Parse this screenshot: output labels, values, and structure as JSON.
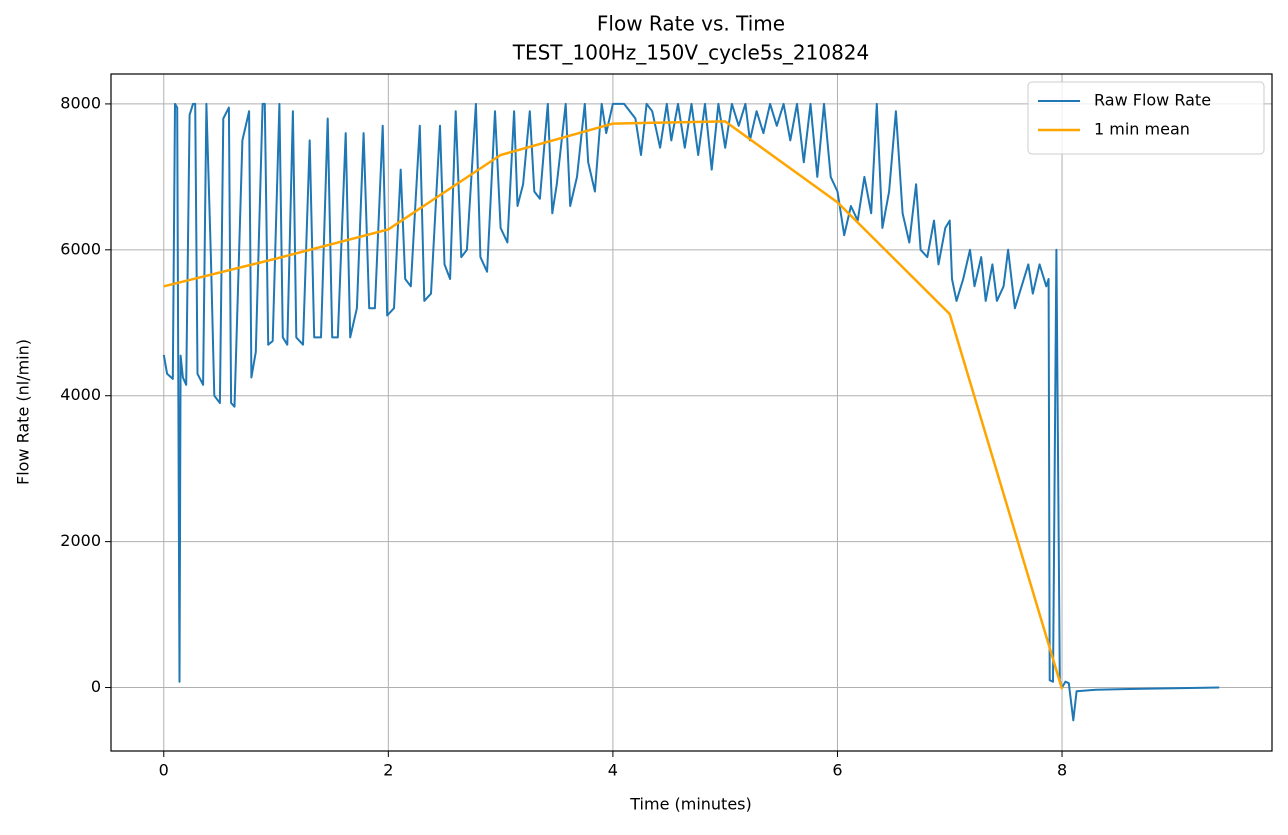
{
  "chart_data": {
    "type": "line",
    "title": "Flow Rate vs. Time",
    "subtitle": "TEST_100Hz_150V_cycle5s_210824",
    "x_label": "Time (minutes)",
    "y_label": "Flow Rate (nl/min)",
    "xlim": [
      -0.47,
      9.87
    ],
    "ylim": [
      -870,
      8410
    ],
    "xticks": [
      0,
      2,
      4,
      6,
      8
    ],
    "yticks": [
      0,
      2000,
      4000,
      6000,
      8000
    ],
    "grid": true,
    "legend": "upper right",
    "series": [
      {
        "name": "Raw Flow Rate",
        "color": "#1f77b4",
        "width": 2,
        "x": [
          0,
          0.03,
          0.08,
          0.1,
          0.12,
          0.14,
          0.15,
          0.17,
          0.2,
          0.23,
          0.26,
          0.28,
          0.3,
          0.35,
          0.38,
          0.42,
          0.45,
          0.5,
          0.53,
          0.58,
          0.6,
          0.63,
          0.7,
          0.76,
          0.78,
          0.82,
          0.88,
          0.9,
          0.93,
          0.97,
          1.03,
          1.06,
          1.1,
          1.15,
          1.18,
          1.24,
          1.3,
          1.34,
          1.4,
          1.46,
          1.5,
          1.55,
          1.62,
          1.66,
          1.72,
          1.78,
          1.83,
          1.88,
          1.95,
          1.99,
          2.05,
          2.11,
          2.15,
          2.2,
          2.28,
          2.32,
          2.38,
          2.46,
          2.5,
          2.55,
          2.6,
          2.65,
          2.7,
          2.78,
          2.82,
          2.88,
          2.95,
          3.0,
          3.06,
          3.12,
          3.15,
          3.2,
          3.26,
          3.3,
          3.35,
          3.42,
          3.46,
          3.5,
          3.58,
          3.62,
          3.68,
          3.75,
          3.78,
          3.84,
          3.9,
          3.94,
          4.0,
          4.1,
          4.2,
          4.25,
          4.3,
          4.35,
          4.42,
          4.48,
          4.52,
          4.58,
          4.64,
          4.7,
          4.76,
          4.82,
          4.88,
          4.94,
          5.0,
          5.06,
          5.12,
          5.18,
          5.22,
          5.28,
          5.34,
          5.4,
          5.46,
          5.52,
          5.58,
          5.64,
          5.7,
          5.76,
          5.82,
          5.88,
          5.94,
          6.0,
          6.06,
          6.12,
          6.18,
          6.24,
          6.3,
          6.35,
          6.4,
          6.46,
          6.52,
          6.58,
          6.64,
          6.7,
          6.74,
          6.8,
          6.86,
          6.9,
          6.96,
          7.0,
          7.02,
          7.06,
          7.12,
          7.18,
          7.22,
          7.28,
          7.32,
          7.38,
          7.42,
          7.48,
          7.52,
          7.58,
          7.64,
          7.7,
          7.74,
          7.8,
          7.86,
          7.88,
          7.89,
          7.92,
          7.95,
          7.98,
          8.0,
          8.03,
          8.06,
          8.1,
          8.13,
          8.3,
          8.6,
          9.0,
          9.4
        ],
        "values": [
          4560,
          4300,
          4230,
          8000,
          7950,
          80,
          4550,
          4250,
          4150,
          7850,
          8000,
          8000,
          4300,
          4150,
          8000,
          5900,
          4000,
          3900,
          7800,
          7950,
          3900,
          3850,
          7500,
          7900,
          4250,
          4600,
          8000,
          8000,
          4700,
          4750,
          8000,
          4800,
          4700,
          7900,
          4800,
          4700,
          7500,
          4800,
          4800,
          7800,
          4800,
          4800,
          7600,
          4800,
          5200,
          7600,
          5200,
          5200,
          7700,
          5100,
          5200,
          7100,
          5600,
          5500,
          7700,
          5300,
          5400,
          7700,
          5800,
          5600,
          7900,
          5900,
          6000,
          8000,
          5900,
          5700,
          7900,
          6300,
          6100,
          7900,
          6600,
          6900,
          7900,
          6800,
          6700,
          8000,
          6500,
          6900,
          8000,
          6600,
          7000,
          8000,
          7200,
          6800,
          8000,
          7600,
          8000,
          8000,
          7800,
          7300,
          8000,
          7900,
          7400,
          8000,
          7500,
          8000,
          7400,
          8000,
          7300,
          8000,
          7100,
          8000,
          7400,
          8000,
          7700,
          8000,
          7500,
          7900,
          7600,
          8000,
          7700,
          8000,
          7500,
          8000,
          7200,
          8000,
          7000,
          8000,
          7000,
          6800,
          6200,
          6600,
          6400,
          7000,
          6500,
          8000,
          6300,
          6800,
          7900,
          6500,
          6100,
          6900,
          6000,
          5900,
          6400,
          5800,
          6300,
          6400,
          5600,
          5300,
          5600,
          6000,
          5500,
          5900,
          5300,
          5800,
          5300,
          5500,
          6000,
          5200,
          5500,
          5800,
          5400,
          5800,
          5500,
          5600,
          100,
          80,
          6000,
          100,
          0,
          80,
          60,
          -450,
          -50,
          -30,
          -20,
          -10,
          0
        ]
      },
      {
        "name": "1 min mean",
        "color": "#ffa500",
        "width": 2.5,
        "x": [
          0,
          1,
          2,
          3,
          4,
          5,
          6,
          7,
          8
        ],
        "values": [
          5500,
          5880,
          6280,
          7300,
          7730,
          7760,
          6650,
          5120,
          -20
        ]
      }
    ]
  }
}
